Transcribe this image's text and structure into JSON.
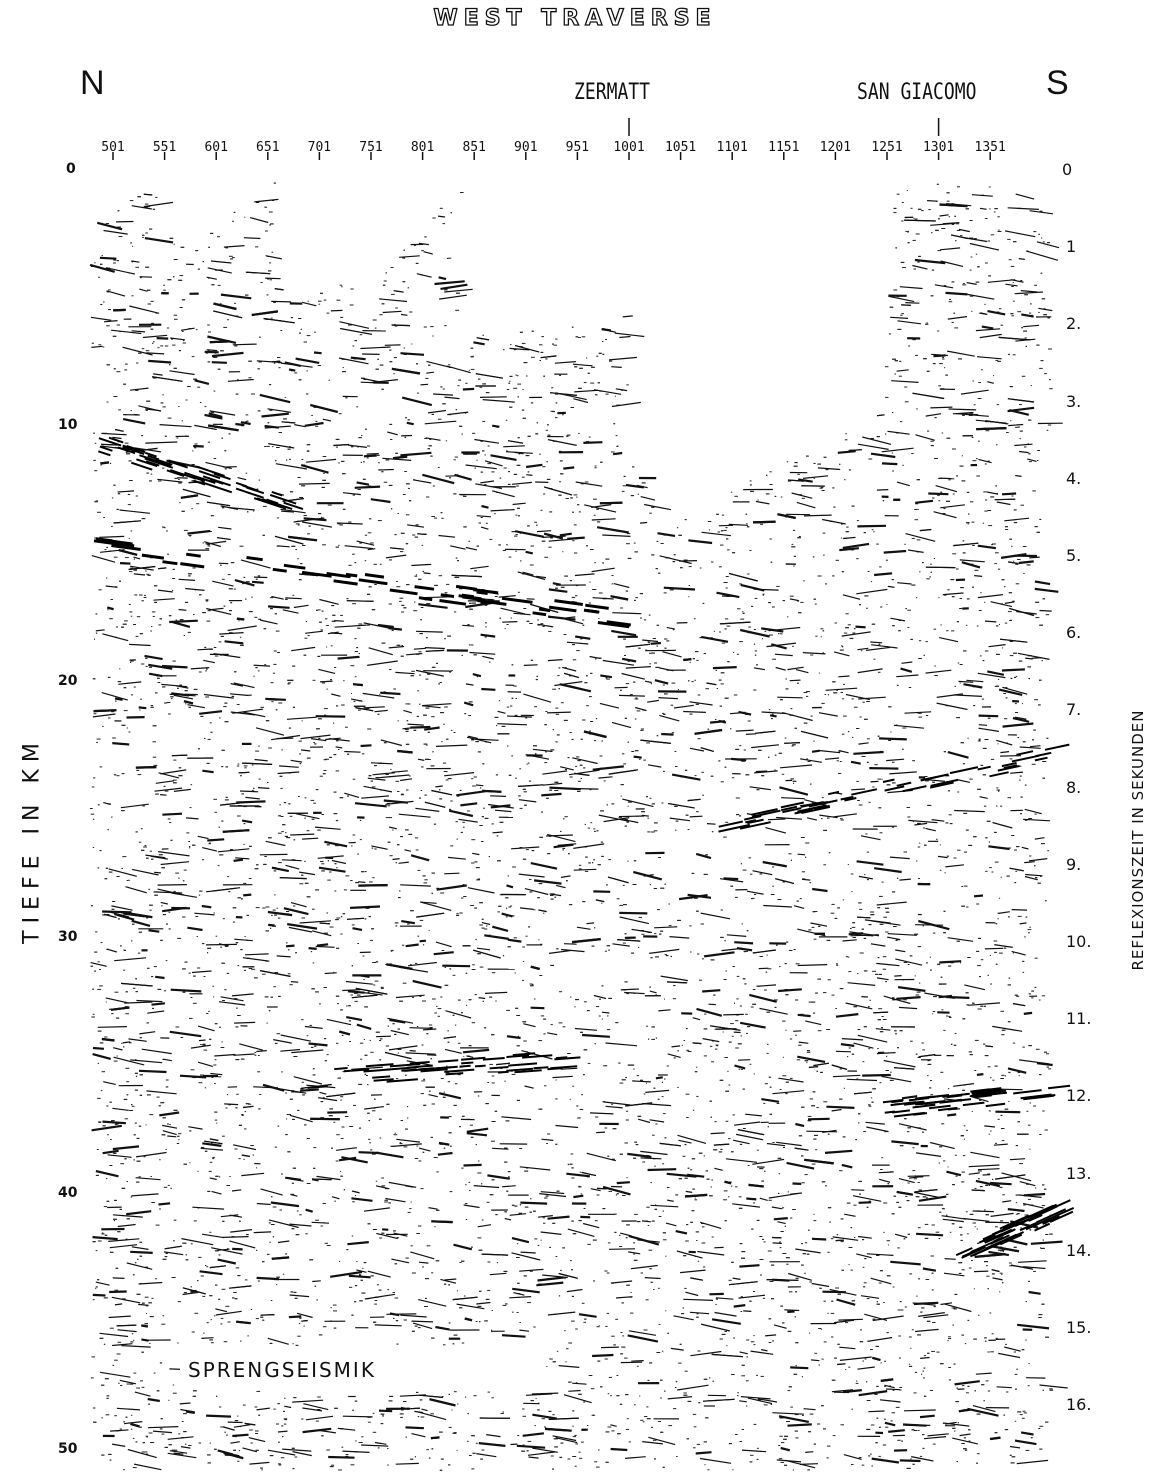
{
  "title": "WEST TRAVERSE",
  "compass": {
    "north": "N",
    "south": "S"
  },
  "places": [
    {
      "name": "ZERMATT",
      "shot": 1001
    },
    {
      "name": "SAN GIACOMO",
      "shot": 1301
    }
  ],
  "shotpoints": [
    "501",
    "551",
    "601",
    "651",
    "701",
    "751",
    "801",
    "851",
    "901",
    "951",
    "1001",
    "1051",
    "1101",
    "1151",
    "1201",
    "1251",
    "1301",
    "1351"
  ],
  "depth_axis": {
    "label": "TIEFE IN KM",
    "ticks": [
      "0",
      "10",
      "20",
      "30",
      "40",
      "50"
    ]
  },
  "time_axis": {
    "label": "REFLEXIONSZEIT IN SEKUNDEN",
    "ticks": [
      "0",
      "1",
      "2.",
      "3.",
      "4.",
      "5.",
      "6.",
      "7.",
      "8.",
      "9.",
      "10.",
      "11.",
      "12.",
      "13.",
      "14.",
      "15.",
      "16."
    ]
  },
  "method_label": "SPRENGSEISMIK"
}
